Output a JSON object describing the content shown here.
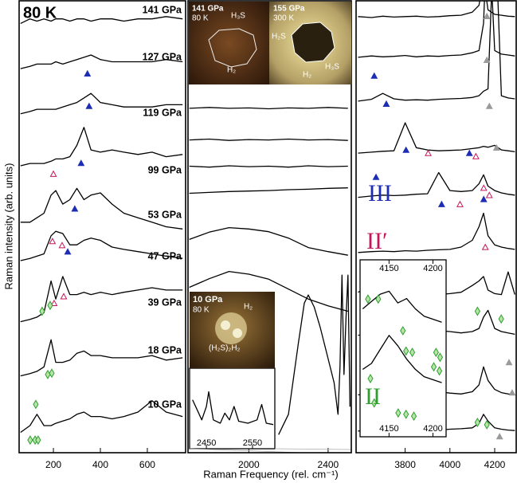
{
  "chart_data": [
    {
      "type": "line",
      "y_label": "Raman intensity (arb. units)",
      "annotation": "80 K",
      "color": "#000000",
      "xlim": [
        54,
        763
      ],
      "xticks": [
        200,
        400,
        600
      ],
      "ylim": [
        0,
        100
      ],
      "x": [
        60,
        100,
        130,
        160,
        190,
        210,
        240,
        270,
        300,
        330,
        360,
        400,
        450,
        500,
        560,
        620,
        680,
        750
      ],
      "series": [
        {
          "name": "141 GPa",
          "values": [
            95,
            96,
            95.5,
            96,
            95.5,
            96,
            96,
            95.5,
            96,
            96,
            95.5,
            96,
            96,
            95.5,
            96,
            96,
            96.5,
            96
          ]
        },
        {
          "name": "127 GPa",
          "values": [
            85,
            85.5,
            86,
            86,
            86,
            86.5,
            86,
            86.5,
            87,
            87.5,
            88,
            87,
            86.5,
            86.5,
            86.5,
            86.5,
            87,
            86.5
          ]
        },
        {
          "name": "119 GPa",
          "values": [
            75,
            75.5,
            76,
            76,
            76,
            76,
            76.5,
            77,
            77.5,
            78.5,
            79.5,
            77.5,
            77,
            76.5,
            76.5,
            76.5,
            77,
            77
          ]
        },
        {
          "name": "99 GPa",
          "values": [
            63.5,
            64,
            64,
            64,
            64.5,
            65,
            65,
            65.5,
            68,
            72,
            67,
            66.5,
            67,
            66.5,
            66,
            66.5,
            65.5,
            66
          ]
        },
        {
          "name": "53 GPa",
          "values": [
            51,
            51,
            52,
            53,
            57,
            58,
            55,
            56,
            58.5,
            56,
            57,
            57.5,
            55,
            53,
            52,
            51,
            50,
            49.5
          ]
        },
        {
          "name": "47 GPa",
          "values": [
            42.5,
            43,
            43.5,
            44,
            48,
            49,
            48.5,
            46,
            46,
            47,
            47.5,
            47,
            45.5,
            45,
            44.5,
            44,
            43.5,
            43
          ]
        },
        {
          "name": "39 GPa",
          "values": [
            29,
            29.5,
            30,
            31,
            38,
            34,
            39,
            35,
            35,
            35.5,
            35,
            35.5,
            35,
            35.5,
            36,
            36.5,
            36,
            36
          ]
        },
        {
          "name": "18 GPa",
          "values": [
            17,
            17.5,
            18,
            19,
            25,
            20,
            20,
            20.5,
            22,
            22.5,
            21.5,
            21.5,
            21,
            21,
            21,
            21.5,
            20.5,
            21
          ]
        },
        {
          "name": "10 GPa",
          "values": [
            4.5,
            6,
            8.5,
            6,
            6,
            6.5,
            7,
            7.5,
            8.5,
            9,
            8,
            8,
            7.5,
            8,
            9,
            11.5,
            9,
            8
          ]
        }
      ],
      "markers": [
        {
          "shape": "triangle",
          "color": "#1d2db3",
          "fill": "#1d2db3",
          "x": [
            345,
            352,
            318,
            291,
            261
          ],
          "values": [
            83.8,
            76.6,
            64,
            53.9,
            44.4
          ]
        },
        {
          "shape": "triangle",
          "color": "#c2185b",
          "fill": "none",
          "x": [
            200,
            196,
            237,
            203,
            244
          ],
          "values": [
            61.6,
            46.7,
            45.8,
            33,
            34.5
          ]
        },
        {
          "shape": "diamond",
          "color": "#2e9e2e",
          "fill": "#b5e6a8",
          "x": [
            152,
            186,
            125,
            176,
            193,
            101,
            122,
            135
          ],
          "values": [
            31.3,
            32.6,
            10.7,
            17.3,
            17.6,
            2.8,
            2.8,
            2.8
          ]
        }
      ]
    },
    {
      "type": "line",
      "x_label": "Raman Frequency (rel. cm⁻¹)",
      "color": "#000000",
      "xlim": [
        1693,
        2517
      ],
      "xticks": [
        2000,
        2400
      ],
      "ylim": [
        0,
        100
      ],
      "x": [
        1700,
        1800,
        1900,
        2000,
        2100,
        2200,
        2300,
        2400,
        2500
      ],
      "series": [
        {
          "values": [
            76.2,
            76.4,
            76.2,
            76.3,
            76.1,
            76.3,
            76.2,
            76.4,
            76.2
          ]
        },
        {
          "values": [
            69.2,
            69.4,
            69.1,
            69.3,
            69.2,
            69.4,
            69.2,
            69.3,
            69.1
          ]
        },
        {
          "values": [
            63.4,
            63.2,
            63.5,
            63.3,
            63.4,
            63.2,
            63.5,
            63.3,
            63.4
          ]
        },
        {
          "values": [
            57.4,
            57.6,
            57.8,
            57.9,
            58,
            58.2,
            58.3,
            58.5,
            58.6
          ]
        },
        {
          "values": [
            47.2,
            48.8,
            49.8,
            49.5,
            48.9,
            47.5,
            45.4,
            44.5,
            43.7
          ]
        },
        {
          "values": [
            36.6,
            38.5,
            40.1,
            39.5,
            38.4,
            36.2,
            34,
            32.5,
            31.3
          ]
        },
        {
          "x": [
            2150,
            2200,
            2250,
            2280,
            2300,
            2330,
            2360,
            2400,
            2430,
            2450,
            2460,
            2470,
            2480,
            2490,
            2500,
            2510
          ],
          "values": [
            4,
            8.5,
            24.3,
            33.1,
            34.9,
            32.2,
            27.8,
            20.8,
            15.5,
            8.5,
            19,
            39.3,
            17.3,
            29.6,
            39.3,
            10.2
          ]
        }
      ],
      "inset": {
        "xlim": [
          2417,
          2595
        ],
        "xticks": [
          2450,
          2550
        ],
        "ylim": [
          0,
          10
        ],
        "x": [
          2420,
          2440,
          2450,
          2455,
          2465,
          2480,
          2490,
          2500,
          2510,
          2520,
          2540,
          2560,
          2570,
          2580,
          2595
        ],
        "series": [
          {
            "values": [
              6,
              3,
              5,
              7.2,
              3,
              2.5,
              4,
              3,
              5,
              2.8,
              2.5,
              3,
              5.3,
              2.5,
              2.3
            ]
          }
        ]
      },
      "photos": [
        {
          "labels": [
            "141 GPa",
            "80 K",
            "H₃S",
            "H₂"
          ]
        },
        {
          "labels": [
            "155 GPa",
            "300 K",
            "H₂S",
            "H₃S",
            "H₂"
          ]
        },
        {
          "labels": [
            "10 GPa",
            "80 K",
            "H₂",
            "(H₂S)₂H₂"
          ]
        }
      ]
    },
    {
      "type": "line",
      "color": "#000000",
      "xlim": [
        3581,
        4296
      ],
      "xticks": [
        3800,
        4000,
        4200
      ],
      "ylim": [
        0,
        100
      ],
      "x": [
        3590,
        3650,
        3700,
        3750,
        3800,
        3850,
        3900,
        3950,
        4000,
        4050,
        4100,
        4130,
        4150,
        4170,
        4200,
        4230,
        4260,
        4290
      ],
      "series": [
        {
          "values": [
            96.5,
            96.3,
            96.6,
            96.4,
            96.5,
            96.6,
            96.4,
            96.5,
            96.7,
            96.8,
            97.5,
            99,
            105,
            98,
            97,
            96.8,
            96.6,
            96.5
          ]
        },
        {
          "values": [
            87.5,
            87.8,
            87.6,
            87.7,
            87.9,
            87.6,
            87.8,
            87.7,
            87.9,
            88,
            88.5,
            89,
            95,
            120,
            89,
            88.2,
            88,
            87.8
          ]
        },
        {
          "values": [
            77.8,
            78.2,
            79.5,
            78.3,
            78,
            78.1,
            78,
            78.2,
            78.3,
            78.4,
            78.6,
            79,
            80,
            80.5,
            120,
            79,
            78.5,
            78.3
          ]
        },
        {
          "values": [
            66.3,
            66.5,
            66.7,
            66.8,
            73,
            67.5,
            67,
            66.8,
            66.9,
            67,
            67.3,
            67.5,
            67.8,
            67.6,
            68,
            67,
            66.8,
            66.6
          ]
        },
        {
          "values": [
            56.5,
            56.8,
            57,
            56.9,
            57,
            57.2,
            57.3,
            62,
            58,
            57.8,
            58,
            59.5,
            61.5,
            59,
            58,
            57.5,
            57.2,
            57
          ]
        },
        {
          "values": [
            44.3,
            44.5,
            44.6,
            44.5,
            44.7,
            44.6,
            44.8,
            44.9,
            45,
            45.5,
            47,
            50,
            53,
            48,
            46,
            45.5,
            45.2,
            45
          ]
        },
        {
          "values": [
            35.5,
            37,
            36.5,
            36,
            35.5,
            35,
            35.2,
            35,
            35.2,
            35.5,
            37,
            38,
            39,
            36,
            35.2,
            35,
            40,
            35
          ]
        },
        {
          "values": [
            26,
            26.3,
            26.2,
            26.5,
            28,
            30,
            28,
            27,
            26.8,
            26.5,
            26.8,
            27.5,
            30,
            31.5,
            27.5,
            26.8,
            26.5,
            26.2
          ]
        },
        {
          "values": [
            12.8,
            13,
            13.2,
            13.5,
            16,
            18,
            14,
            13.5,
            13.2,
            13,
            13.5,
            15,
            19,
            16,
            14,
            13.3,
            13,
            12.8
          ]
        },
        {
          "values": [
            4.8,
            5,
            5.1,
            5,
            5.2,
            5.3,
            5.1,
            5,
            5.2,
            5.3,
            5.5,
            6.5,
            8.5,
            7,
            5.5,
            5.2,
            5,
            4.9
          ]
        }
      ],
      "inset": {
        "xlim": [
          4117,
          4215
        ],
        "xticks": [
          4150,
          4200
        ],
        "ylim": [
          0,
          10
        ],
        "x": [
          4120,
          4130,
          4140,
          4150,
          4160,
          4170,
          4180,
          4190,
          4200,
          4210
        ],
        "series": [
          {
            "values": [
              7.7,
              8.2,
              8.7,
              8.9,
              8.1,
              8.4,
              7.7,
              7.2,
              7,
              6.8
            ]
          },
          {
            "values": [
              3.6,
              4,
              4.95,
              5.9,
              5.2,
              4.3,
              3.6,
              3.1,
              2.9,
              2.7
            ]
          }
        ]
      },
      "markers": [
        {
          "shape": "triangle",
          "color": "#1d2db3",
          "fill": "#1d2db3",
          "x": [
            3662,
            3716,
            3804,
            4087,
            3670,
            3963,
            4151
          ],
          "values": [
            83.3,
            77.1,
            66.9,
            66.2,
            60.9,
            54.9,
            56
          ]
        },
        {
          "shape": "triangle",
          "color": "#c2185b",
          "fill": "none",
          "x": [
            3903,
            4116,
            4045,
            4151,
            4176,
            4158
          ],
          "values": [
            66.2,
            65.5,
            54.9,
            58.5,
            56.9,
            45.4
          ]
        },
        {
          "shape": "triangle",
          "color": "#9a9a9a",
          "fill": "#9a9a9a",
          "x": [
            4165,
            4165,
            4176,
            4208,
            4264,
            4278,
            4222
          ],
          "values": [
            96.5,
            86.8,
            76.6,
            67.4,
            19.9,
            13.2,
            3.5
          ]
        },
        {
          "shape": "diamond",
          "color": "#2e9e2e",
          "fill": "#b5e6a8",
          "x": [
            3634,
            3790,
            3928,
            3953,
            4123,
            4229,
            4123,
            4165,
            3662,
            3680,
            3804,
            3832,
            3938,
            3956,
            3645,
            3769,
            3804,
            3839
          ],
          "values": [
            34,
            27,
            19,
            18.1,
            31.3,
            29.6,
            6.7,
            6.2,
            11,
            34,
            22.5,
            22.2,
            22.2,
            21.1,
            16.4,
            8.8,
            8.5,
            8.1
          ]
        }
      ],
      "labels": [
        {
          "text": "III",
          "color": "#1d2db3"
        },
        {
          "text": "II′",
          "color": "#c2185b"
        },
        {
          "text": "II",
          "color": "#2e9e2e"
        }
      ]
    }
  ]
}
